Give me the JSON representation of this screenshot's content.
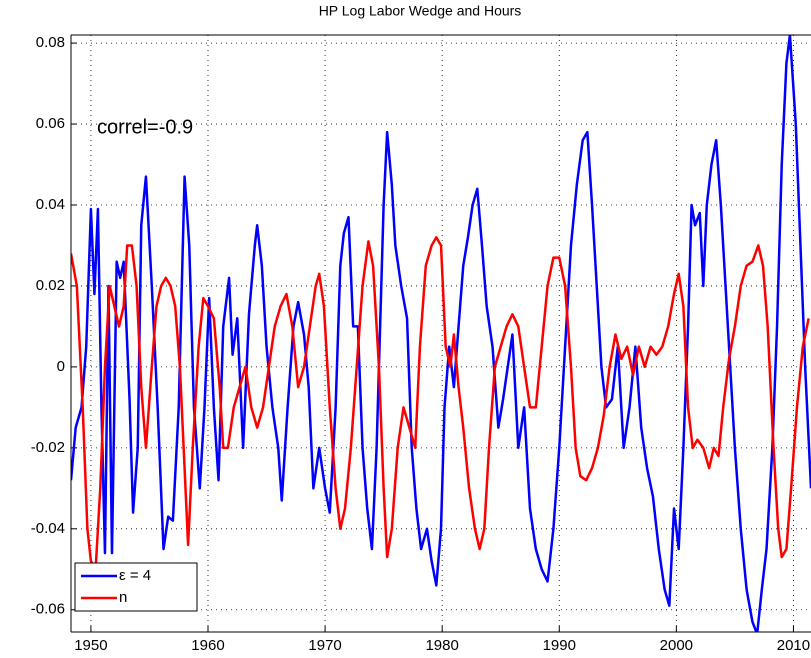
{
  "chart_data": {
    "type": "line",
    "title": "HP Log Labor Wedge and Hours",
    "annotation": "correl=-0.9",
    "xlim": [
      1948.3,
      2011.5
    ],
    "ylim": [
      -0.0655,
      0.082
    ],
    "xticks": [
      1950,
      1960,
      1970,
      1980,
      1990,
      2000,
      2010
    ],
    "yticks": [
      -0.06,
      -0.04,
      -0.02,
      0,
      0.02,
      0.04,
      0.06,
      0.08
    ],
    "grid": true,
    "legend": "lower left",
    "series": [
      {
        "name": "ε = 4",
        "color": "#0000ff",
        "x": [
          1948.3,
          1948.7,
          1949.2,
          1949.6,
          1950,
          1950.3,
          1950.6,
          1950.9,
          1951.2,
          1951.5,
          1951.8,
          1952.2,
          1952.5,
          1952.8,
          1953.3,
          1953.6,
          1954,
          1954.3,
          1954.7,
          1955.2,
          1955.7,
          1956.2,
          1956.6,
          1957,
          1957.5,
          1958,
          1958.4,
          1958.8,
          1959.3,
          1959.7,
          1960.1,
          1960.5,
          1960.9,
          1961.3,
          1961.8,
          1962.1,
          1962.5,
          1963,
          1963.5,
          1964,
          1964.2,
          1964.6,
          1965,
          1965.5,
          1966,
          1966.3,
          1966.8,
          1967.3,
          1967.7,
          1968.2,
          1968.6,
          1969,
          1969.5,
          1970,
          1970.4,
          1970.9,
          1971.3,
          1971.6,
          1972,
          1972.4,
          1972.8,
          1973.2,
          1973.6,
          1974,
          1974.4,
          1975,
          1975.3,
          1975.7,
          1976,
          1976.5,
          1977,
          1977.4,
          1977.8,
          1978.2,
          1978.7,
          1979.1,
          1979.5,
          1979.9,
          1980.2,
          1980.6,
          1981,
          1981.4,
          1981.8,
          1982.2,
          1982.6,
          1983,
          1983.4,
          1983.8,
          1984.3,
          1984.8,
          1985.2,
          1985.6,
          1986,
          1986.5,
          1987,
          1987.5,
          1988,
          1988.5,
          1989,
          1989.5,
          1990,
          1990.5,
          1991,
          1991.5,
          1992,
          1992.4,
          1992.8,
          1993.2,
          1993.6,
          1994,
          1994.5,
          1995,
          1995.5,
          1996,
          1996.5,
          1997,
          1997.5,
          1998,
          1998.5,
          1999,
          1999.4,
          1999.8,
          2000.2,
          2000.6,
          2001,
          2001.3,
          2001.6,
          2002,
          2002.3,
          2002.6,
          2003,
          2003.4,
          2003.8,
          2004.2,
          2004.6,
          2005,
          2005.5,
          2006,
          2006.5,
          2006.9,
          2007.3,
          2007.7,
          2008.2,
          2008.6,
          2009,
          2009.4,
          2009.7,
          2010.2,
          2010.6,
          2011,
          2011.5
        ],
        "values": [
          -0.028,
          -0.015,
          -0.01,
          0.005,
          0.039,
          0.018,
          0.039,
          -0.01,
          -0.046,
          0.02,
          -0.046,
          0.026,
          0.022,
          0.026,
          -0.008,
          -0.036,
          -0.02,
          0.035,
          0.047,
          0.02,
          -0.01,
          -0.045,
          -0.037,
          -0.038,
          -0.01,
          0.047,
          0.03,
          -0.01,
          -0.03,
          -0.01,
          0.017,
          -0.01,
          -0.028,
          0.01,
          0.022,
          0.003,
          0.012,
          -0.02,
          0.013,
          0.03,
          0.035,
          0.025,
          0.005,
          -0.01,
          -0.02,
          -0.033,
          -0.01,
          0.01,
          0.016,
          0.008,
          -0.005,
          -0.03,
          -0.02,
          -0.03,
          -0.036,
          -0.01,
          0.025,
          0.033,
          0.037,
          0.01,
          0.01,
          -0.02,
          -0.035,
          -0.045,
          -0.02,
          0.04,
          0.058,
          0.045,
          0.03,
          0.02,
          0.012,
          -0.02,
          -0.035,
          -0.045,
          -0.04,
          -0.048,
          -0.054,
          -0.04,
          -0.01,
          0.005,
          -0.005,
          0.01,
          0.025,
          0.032,
          0.04,
          0.044,
          0.03,
          0.015,
          0.005,
          -0.015,
          -0.008,
          0,
          0.008,
          -0.02,
          -0.01,
          -0.035,
          -0.045,
          -0.05,
          -0.053,
          -0.04,
          -0.02,
          0.005,
          0.03,
          0.045,
          0.056,
          0.058,
          0.04,
          0.02,
          0,
          -0.01,
          -0.008,
          0.005,
          -0.02,
          -0.01,
          0.005,
          -0.015,
          -0.025,
          -0.032,
          -0.045,
          -0.055,
          -0.059,
          -0.035,
          -0.045,
          -0.02,
          0.01,
          0.04,
          0.035,
          0.038,
          0.02,
          0.04,
          0.05,
          0.056,
          0.04,
          0.02,
          0,
          -0.02,
          -0.04,
          -0.055,
          -0.063,
          -0.066,
          -0.055,
          -0.045,
          -0.02,
          0.01,
          0.05,
          0.075,
          0.082,
          0.06,
          0.03,
          0,
          -0.03
        ]
      },
      {
        "name": "n",
        "color": "#ff0000",
        "x": [
          1948.3,
          1948.8,
          1949.3,
          1949.7,
          1950,
          1950.4,
          1950.8,
          1951.2,
          1951.6,
          1952,
          1952.4,
          1952.8,
          1953.1,
          1953.5,
          1953.9,
          1954.3,
          1954.7,
          1955.2,
          1955.6,
          1956,
          1956.4,
          1956.8,
          1957.2,
          1957.6,
          1958,
          1958.3,
          1958.7,
          1959.2,
          1959.6,
          1960,
          1960.5,
          1961,
          1961.3,
          1961.7,
          1962.2,
          1962.7,
          1963.2,
          1963.7,
          1964.2,
          1964.7,
          1965.2,
          1965.7,
          1966.2,
          1966.7,
          1967.2,
          1967.7,
          1968.2,
          1968.7,
          1969.2,
          1969.5,
          1969.9,
          1970.4,
          1970.9,
          1971.3,
          1971.7,
          1972.2,
          1972.7,
          1973.2,
          1973.7,
          1974.1,
          1974.6,
          1975,
          1975.3,
          1975.7,
          1976.2,
          1976.7,
          1977.2,
          1977.7,
          1978.1,
          1978.6,
          1979.1,
          1979.5,
          1979.9,
          1980.3,
          1980.7,
          1981,
          1981.4,
          1981.8,
          1982.3,
          1982.8,
          1983.2,
          1983.6,
          1984,
          1984.5,
          1985,
          1985.5,
          1986,
          1986.5,
          1987,
          1987.5,
          1988,
          1988.5,
          1989,
          1989.5,
          1990,
          1990.5,
          1991,
          1991.4,
          1991.8,
          1992.3,
          1992.8,
          1993.3,
          1993.8,
          1994.3,
          1994.8,
          1995.3,
          1995.8,
          1996.3,
          1996.8,
          1997.3,
          1997.8,
          1998.3,
          1998.8,
          1999.3,
          1999.8,
          2000.2,
          2000.6,
          2001,
          2001.4,
          2001.8,
          2002.3,
          2002.8,
          2003.2,
          2003.6,
          2004,
          2004.5,
          2005,
          2005.5,
          2006,
          2006.5,
          2007,
          2007.4,
          2007.8,
          2008.3,
          2008.7,
          2009,
          2009.4,
          2009.8,
          2010.3,
          2010.8,
          2011.3
        ],
        "values": [
          0.028,
          0.02,
          -0.01,
          -0.04,
          -0.048,
          -0.05,
          -0.03,
          0,
          0.02,
          0.015,
          0.01,
          0.015,
          0.03,
          0.03,
          0.02,
          -0.005,
          -0.02,
          0,
          0.015,
          0.02,
          0.022,
          0.02,
          0.015,
          0,
          -0.025,
          -0.044,
          -0.02,
          0.005,
          0.017,
          0.015,
          0.012,
          -0.005,
          -0.02,
          -0.02,
          -0.01,
          -0.005,
          0,
          -0.01,
          -0.015,
          -0.01,
          0,
          0.01,
          0.015,
          0.018,
          0.01,
          -0.005,
          0,
          0.01,
          0.02,
          0.023,
          0.015,
          -0.01,
          -0.03,
          -0.04,
          -0.035,
          -0.02,
          0,
          0.02,
          0.031,
          0.025,
          0,
          -0.03,
          -0.047,
          -0.04,
          -0.02,
          -0.01,
          -0.015,
          -0.02,
          0.005,
          0.025,
          0.03,
          0.032,
          0.03,
          0.005,
          0,
          0.008,
          -0.005,
          -0.015,
          -0.03,
          -0.04,
          -0.045,
          -0.04,
          -0.02,
          0,
          0.005,
          0.01,
          0.013,
          0.01,
          0,
          -0.01,
          -0.01,
          0.005,
          0.02,
          0.027,
          0.027,
          0.02,
          0,
          -0.02,
          -0.027,
          -0.028,
          -0.025,
          -0.02,
          -0.012,
          0,
          0.008,
          0.002,
          0.005,
          -0.002,
          0.005,
          0,
          0.005,
          0.003,
          0.005,
          0.01,
          0.018,
          0.023,
          0.015,
          -0.01,
          -0.02,
          -0.018,
          -0.02,
          -0.025,
          -0.02,
          -0.022,
          -0.01,
          0.002,
          0.01,
          0.02,
          0.025,
          0.026,
          0.03,
          0.025,
          0.01,
          -0.02,
          -0.04,
          -0.047,
          -0.045,
          -0.03,
          -0.01,
          0.005,
          0.012
        ]
      }
    ]
  }
}
